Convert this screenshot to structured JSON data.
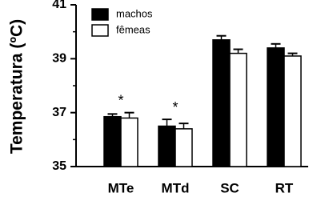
{
  "chart_data": {
    "type": "bar",
    "y_label": "Temperatura (ºC)",
    "categories": [
      "MTe",
      "MTd",
      "SC",
      "RT"
    ],
    "series": [
      {
        "name": "machos",
        "color": "#000000",
        "values": [
          36.85,
          36.5,
          39.7,
          39.4
        ],
        "errors": [
          0.1,
          0.25,
          0.15,
          0.15
        ]
      },
      {
        "name": "fêmeas",
        "color": "#ffffff",
        "values": [
          36.8,
          36.4,
          39.2,
          39.1
        ],
        "errors": [
          0.2,
          0.2,
          0.15,
          0.1
        ]
      }
    ],
    "annotations": [
      "*",
      "*"
    ],
    "ylim": [
      35,
      41
    ],
    "yticks": [
      35,
      37,
      39,
      41
    ],
    "minor_yticks": [
      36,
      38,
      40
    ],
    "legend": "top-left"
  }
}
